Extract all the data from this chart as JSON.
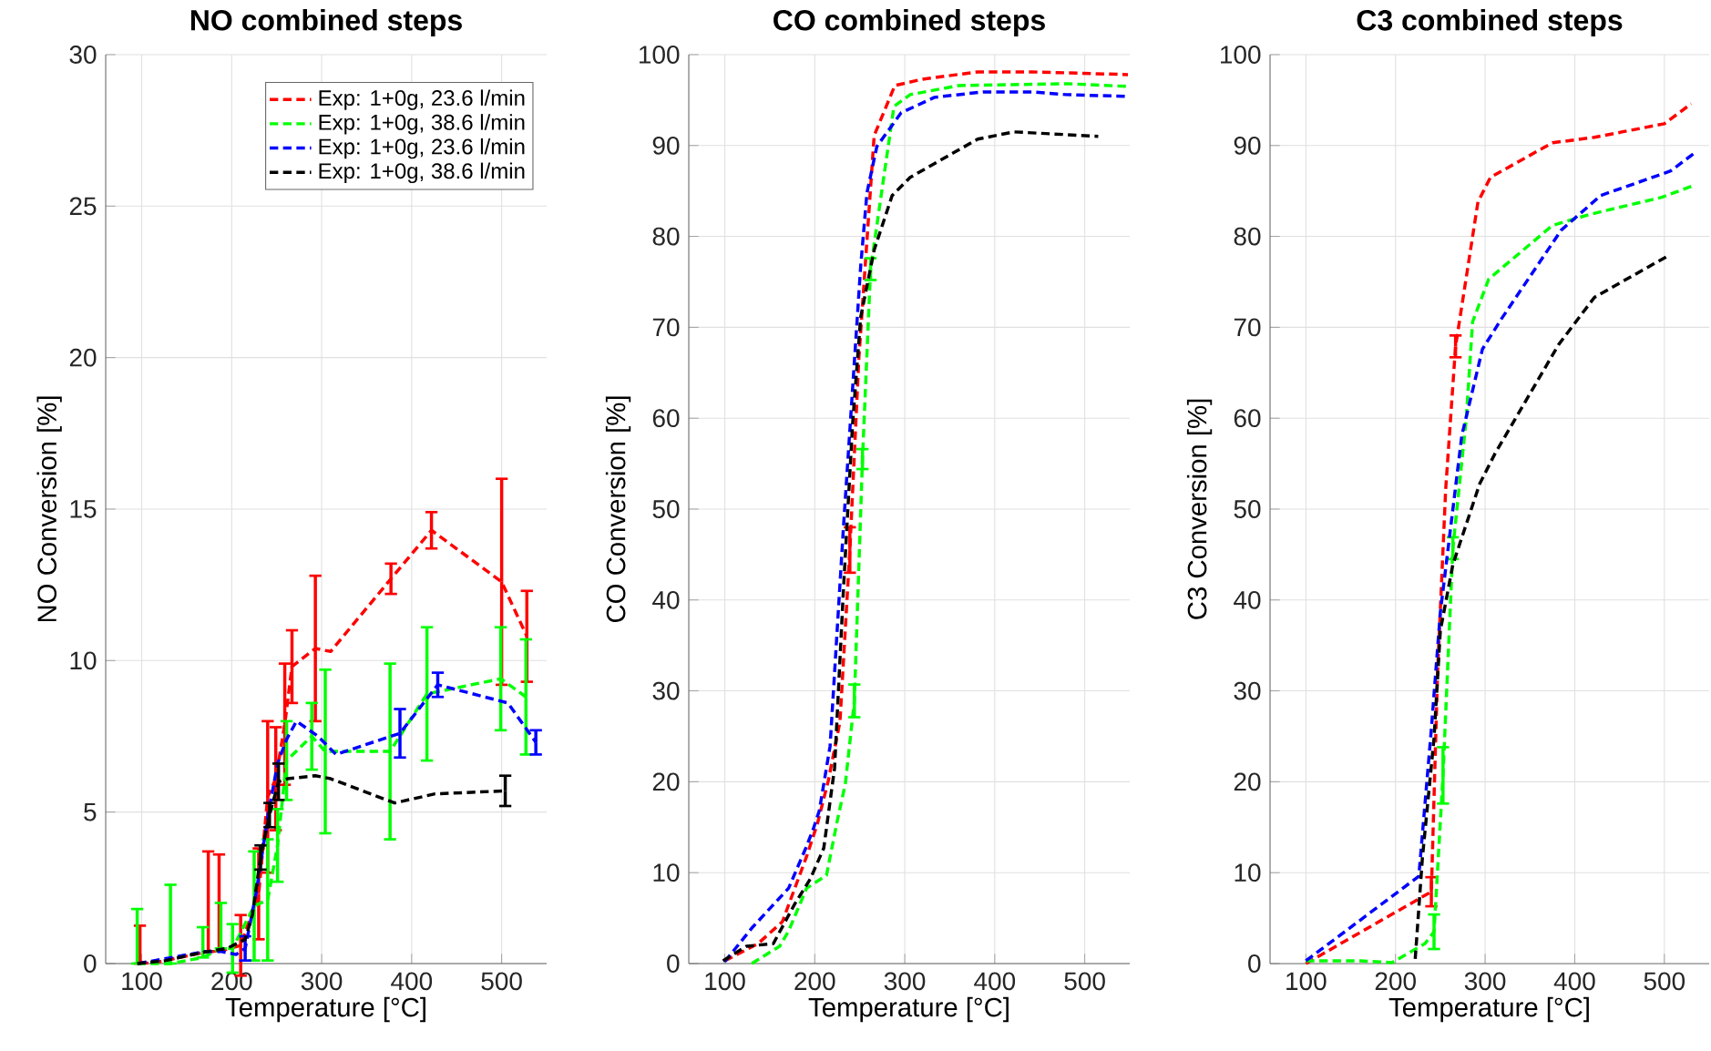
{
  "chart_data": [
    {
      "type": "line",
      "title": "NO combined steps",
      "xlabel": "Temperature [°C]",
      "ylabel": "NO Conversion [%]",
      "xlim": [
        60,
        550
      ],
      "ylim": [
        0,
        30
      ],
      "xticks": [
        100,
        200,
        300,
        400,
        500
      ],
      "yticks": [
        0,
        5,
        10,
        15,
        20,
        25,
        30
      ],
      "grid": true,
      "legend": "top right",
      "line_style": "dashed",
      "series": [
        {
          "name": "Exp: 1+0g, 23.6 l/min",
          "color": "#ff0000",
          "x": [
            98,
            110,
            174,
            186,
            210,
            230,
            240,
            249,
            259,
            267,
            293,
            310,
            377,
            422,
            500,
            528
          ],
          "values": [
            0.05,
            0,
            0.4,
            0.4,
            0.6,
            2.3,
            5.5,
            6.1,
            7.9,
            9.8,
            10.4,
            10.3,
            12.7,
            14.3,
            12.6,
            10.8
          ],
          "errors": [
            [
              0,
              1.25
            ],
            null,
            [
              0.4,
              3.7
            ],
            [
              0.4,
              3.6
            ],
            1.0,
            1.5,
            2.5,
            1.7,
            2.0,
            1.2,
            2.4,
            null,
            0.5,
            0.6,
            3.4,
            1.5
          ]
        },
        {
          "name": "Exp: 1+0g, 38.6 l/min",
          "color": "#00ff00",
          "x": [
            95,
            132,
            168,
            188,
            201,
            225,
            240,
            251,
            261,
            289,
            304,
            376,
            417,
            499,
            527
          ],
          "values": [
            0,
            0,
            0.2,
            0.5,
            0.5,
            1.9,
            2.1,
            3.9,
            6.7,
            7.5,
            7.0,
            7.0,
            8.9,
            9.4,
            8.8
          ],
          "errors": [
            [
              0,
              1.8
            ],
            [
              0,
              2.6
            ],
            [
              0.2,
              1.2
            ],
            [
              0.5,
              2.0
            ],
            0.8,
            1.8,
            2.0,
            1.2,
            1.3,
            1.1,
            2.7,
            2.9,
            2.2,
            1.7,
            1.9
          ]
        },
        {
          "name": "Exp: 1+0g, 23.6 l/min",
          "color": "#0000ff",
          "x": [
            96,
            171,
            188,
            205,
            215,
            227,
            241,
            251,
            261,
            272,
            296,
            316,
            387,
            429,
            507,
            538
          ],
          "values": [
            0,
            0.4,
            0.4,
            0.3,
            0.5,
            2.3,
            5.0,
            6.6,
            7.4,
            8.0,
            7.5,
            6.9,
            7.6,
            9.2,
            8.6,
            7.3
          ],
          "errors": [
            null,
            null,
            null,
            null,
            0.4,
            null,
            null,
            null,
            null,
            null,
            null,
            null,
            0.8,
            0.4,
            null,
            0.4
          ]
        },
        {
          "name": "Exp: 1+0g, 38.6 l/min",
          "color": "#000000",
          "x": [
            95,
            127,
            157,
            174,
            195,
            215,
            223,
            232,
            242,
            252,
            262,
            293,
            310,
            381,
            426,
            504
          ],
          "values": [
            0,
            0.1,
            0.3,
            0.4,
            0.5,
            0.8,
            1.6,
            3.5,
            4.9,
            6.0,
            6.1,
            6.2,
            6.1,
            5.3,
            5.6,
            5.7
          ],
          "errors": [
            null,
            null,
            null,
            null,
            null,
            null,
            null,
            0.4,
            0.4,
            0.6,
            null,
            null,
            null,
            null,
            null,
            0.5
          ]
        }
      ]
    },
    {
      "type": "line",
      "title": "CO combined steps",
      "xlabel": "Temperature [°C]",
      "ylabel": "CO Conversion [%]",
      "xlim": [
        60,
        550
      ],
      "ylim": [
        0,
        100
      ],
      "xticks": [
        100,
        200,
        300,
        400,
        500
      ],
      "yticks": [
        0,
        10,
        20,
        30,
        40,
        50,
        60,
        70,
        80,
        90,
        100
      ],
      "grid": true,
      "line_style": "dashed",
      "series": [
        {
          "color": "#ff0000",
          "x": [
            100,
            137,
            164,
            191,
            203,
            215,
            228,
            239,
            249,
            266,
            289,
            320,
            381,
            441,
            479,
            548
          ],
          "values": [
            0.3,
            2.2,
            4.6,
            11.8,
            15.4,
            20.1,
            26.6,
            45.5,
            66.6,
            91.1,
            96.6,
            97.3,
            98.1,
            98.1,
            98.0,
            97.8
          ],
          "errors": [
            null,
            null,
            null,
            null,
            null,
            null,
            null,
            2.5,
            null,
            null,
            null,
            null,
            null,
            null,
            null,
            null
          ]
        },
        {
          "color": "#00ff00",
          "x": [
            130,
            161,
            171,
            191,
            213,
            225,
            234,
            244,
            253,
            262,
            288,
            306,
            360,
            482,
            548
          ],
          "values": [
            0,
            1.9,
            3.6,
            8.3,
            9.7,
            15.7,
            19.8,
            28.9,
            55.5,
            76.4,
            94.3,
            95.6,
            96.6,
            96.8,
            96.5
          ],
          "errors": [
            null,
            null,
            null,
            null,
            null,
            null,
            null,
            1.8,
            1.1,
            1.2,
            null,
            null,
            null,
            null,
            null
          ]
        },
        {
          "color": "#0000ff",
          "x": [
            100,
            130,
            171,
            190,
            198,
            205,
            217,
            232,
            251,
            258,
            269,
            296,
            333,
            387,
            441,
            479,
            548
          ],
          "values": [
            0.2,
            3.9,
            8.3,
            12.7,
            14.7,
            16.8,
            23.9,
            48.2,
            76.7,
            84.8,
            89.9,
            93.6,
            95.3,
            95.9,
            95.9,
            95.6,
            95.4
          ]
        },
        {
          "color": "#000000",
          "x": [
            98,
            124,
            154,
            178,
            195,
            210,
            222,
            232,
            242,
            251,
            266,
            286,
            306,
            381,
            421,
            479,
            515
          ],
          "values": [
            0.3,
            1.9,
            2.2,
            6.6,
            9.3,
            12.7,
            21.5,
            41.4,
            59.3,
            71.1,
            78.5,
            84.5,
            86.5,
            90.7,
            91.5,
            91.2,
            91.0
          ]
        }
      ]
    },
    {
      "type": "line",
      "title": "C3 combined steps",
      "xlabel": "Temperature [°C]",
      "ylabel": "C3 Conversion [%]",
      "xlim": [
        60,
        550
      ],
      "ylim": [
        0,
        100
      ],
      "xticks": [
        100,
        200,
        300,
        400,
        500
      ],
      "yticks": [
        0,
        10,
        20,
        30,
        40,
        50,
        60,
        70,
        80,
        90,
        100
      ],
      "grid": true,
      "line_style": "dashed",
      "series": [
        {
          "color": "#ff0000",
          "x": [
            100,
            240,
            247,
            256,
            267,
            292,
            306,
            375,
            422,
            500,
            530
          ],
          "values": [
            0,
            7.9,
            32.2,
            52.2,
            67.9,
            83.8,
            86.5,
            90.3,
            90.9,
            92.4,
            94.6
          ],
          "errors": [
            null,
            1.6,
            null,
            null,
            1.2,
            null,
            null,
            null,
            null,
            null,
            null
          ]
        },
        {
          "color": "#00ff00",
          "x": [
            100,
            161,
            196,
            233,
            243,
            253,
            264,
            279,
            286,
            304,
            375,
            416,
            497,
            530
          ],
          "values": [
            0.3,
            0.3,
            0.1,
            2.2,
            3.5,
            20.7,
            45.7,
            60.0,
            70.6,
            75.3,
            81.2,
            82.4,
            84.3,
            85.5
          ],
          "errors": [
            null,
            null,
            null,
            null,
            1.9,
            3.1,
            1.2,
            null,
            null,
            null,
            null,
            null,
            null,
            null
          ]
        },
        {
          "color": "#0000ff",
          "x": [
            100,
            226,
            240,
            250,
            274,
            297,
            318,
            385,
            429,
            507,
            534
          ],
          "values": [
            0.3,
            9.6,
            25.8,
            38.6,
            58.1,
            67.6,
            70.9,
            80.7,
            84.5,
            87.2,
            89.2
          ]
        },
        {
          "color": "#000000",
          "x": [
            222,
            230,
            243,
            250,
            264,
            294,
            311,
            382,
            422,
            503
          ],
          "values": [
            0.5,
            11.6,
            24.8,
            36.6,
            43.9,
            52.8,
            56.1,
            68.1,
            73.3,
            77.8
          ]
        }
      ]
    }
  ]
}
